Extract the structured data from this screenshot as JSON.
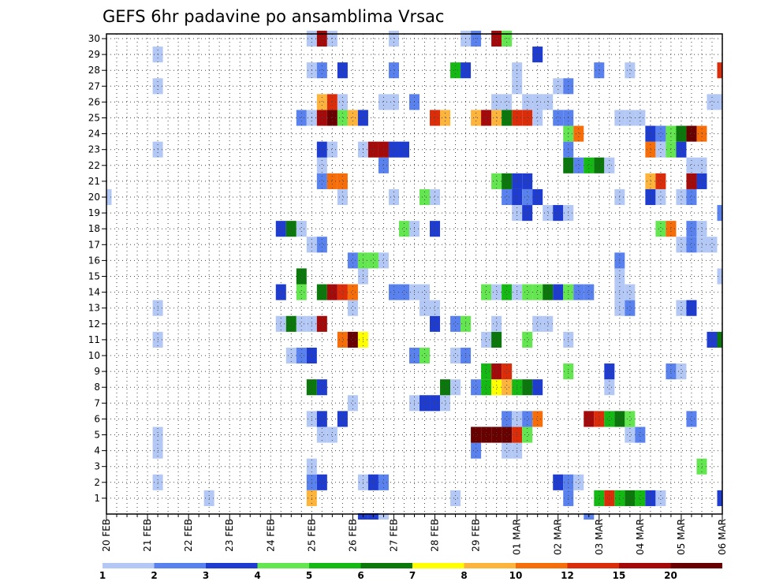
{
  "chart_data": {
    "type": "heatmap",
    "title": "GEFS 6hr padavine po ansamblima Vrsac",
    "xlabel": "",
    "ylabel": "",
    "x_ticks": [
      "20 FEB",
      "21 FEB",
      "22 FEB",
      "23 FEB",
      "24 FEB",
      "25 FEB",
      "26 FEB",
      "27 FEB",
      "28 FEB",
      "29 FEB",
      "01 MAR",
      "02 MAR",
      "03 MAR",
      "04 MAR",
      "05 MAR",
      "06 MAR"
    ],
    "x_range_steps": [
      0,
      60
    ],
    "steps_per_day": 4,
    "members": [
      1,
      2,
      3,
      4,
      5,
      6,
      7,
      8,
      9,
      10,
      11,
      12,
      13,
      14,
      15,
      16,
      17,
      18,
      19,
      20,
      21,
      22,
      23,
      24,
      25,
      26,
      27,
      28,
      29,
      30
    ],
    "grid": true,
    "colorbar": {
      "position": "bottom",
      "labels": [
        "1",
        "2",
        "3",
        "4",
        "5",
        "6",
        "7",
        "8",
        "10",
        "12",
        "15",
        "20"
      ],
      "colors": [
        "#b4c8f5",
        "#5a82ee",
        "#1e3ccf",
        "#64e650",
        "#14b914",
        "#0a780a",
        "#ffff00",
        "#fdb43c",
        "#f56e0a",
        "#dc2d0a",
        "#a50a0a",
        "#690000"
      ]
    },
    "cells": [
      [
        1,
        10,
        1
      ],
      [
        1,
        20,
        8
      ],
      [
        1,
        34,
        1
      ],
      [
        1,
        45,
        2
      ],
      [
        1,
        48,
        5
      ],
      [
        1,
        49,
        10
      ],
      [
        1,
        50,
        5
      ],
      [
        1,
        51,
        6
      ],
      [
        1,
        52,
        5
      ],
      [
        1,
        53,
        3
      ],
      [
        1,
        54,
        1
      ],
      [
        1,
        60,
        3
      ],
      [
        2,
        5,
        1
      ],
      [
        2,
        20,
        2
      ],
      [
        2,
        21,
        3
      ],
      [
        2,
        25,
        1
      ],
      [
        2,
        26,
        3
      ],
      [
        2,
        27,
        2
      ],
      [
        2,
        44,
        3
      ],
      [
        2,
        45,
        2
      ],
      [
        2,
        46,
        1
      ],
      [
        3,
        20,
        1
      ],
      [
        3,
        58,
        4
      ],
      [
        4,
        5,
        1
      ],
      [
        4,
        36,
        2
      ],
      [
        4,
        39,
        1
      ],
      [
        4,
        40,
        1
      ],
      [
        5,
        5,
        1
      ],
      [
        5,
        21,
        1
      ],
      [
        5,
        22,
        1
      ],
      [
        5,
        36,
        12
      ],
      [
        5,
        37,
        12
      ],
      [
        5,
        38,
        12
      ],
      [
        5,
        39,
        12
      ],
      [
        5,
        40,
        10
      ],
      [
        5,
        41,
        4
      ],
      [
        5,
        51,
        1
      ],
      [
        5,
        52,
        2
      ],
      [
        6,
        20,
        1
      ],
      [
        6,
        21,
        3
      ],
      [
        6,
        23,
        3
      ],
      [
        6,
        39,
        2
      ],
      [
        6,
        40,
        1
      ],
      [
        6,
        41,
        2
      ],
      [
        6,
        42,
        9
      ],
      [
        6,
        47,
        11
      ],
      [
        6,
        48,
        10
      ],
      [
        6,
        49,
        5
      ],
      [
        6,
        50,
        6
      ],
      [
        6,
        51,
        4
      ],
      [
        6,
        57,
        2
      ],
      [
        7,
        24,
        1
      ],
      [
        7,
        30,
        1
      ],
      [
        7,
        31,
        3
      ],
      [
        7,
        32,
        3
      ],
      [
        7,
        33,
        1
      ],
      [
        8,
        20,
        6
      ],
      [
        8,
        21,
        3
      ],
      [
        8,
        33,
        6
      ],
      [
        8,
        34,
        1
      ],
      [
        8,
        36,
        2
      ],
      [
        8,
        37,
        5
      ],
      [
        8,
        38,
        7
      ],
      [
        8,
        39,
        8
      ],
      [
        8,
        40,
        5
      ],
      [
        8,
        41,
        6
      ],
      [
        8,
        42,
        3
      ],
      [
        8,
        49,
        1
      ],
      [
        9,
        37,
        5
      ],
      [
        9,
        38,
        11
      ],
      [
        9,
        39,
        10
      ],
      [
        9,
        45,
        4
      ],
      [
        9,
        49,
        3
      ],
      [
        9,
        55,
        2
      ],
      [
        9,
        56,
        1
      ],
      [
        10,
        18,
        1
      ],
      [
        10,
        19,
        2
      ],
      [
        10,
        20,
        3
      ],
      [
        10,
        30,
        2
      ],
      [
        10,
        31,
        4
      ],
      [
        10,
        34,
        1
      ],
      [
        10,
        35,
        2
      ],
      [
        11,
        5,
        1
      ],
      [
        11,
        23,
        9
      ],
      [
        11,
        24,
        12
      ],
      [
        11,
        25,
        7
      ],
      [
        11,
        37,
        1
      ],
      [
        11,
        38,
        6
      ],
      [
        11,
        41,
        4
      ],
      [
        11,
        45,
        1
      ],
      [
        11,
        59,
        3
      ],
      [
        11,
        60,
        6
      ],
      [
        12,
        17,
        1
      ],
      [
        12,
        18,
        6
      ],
      [
        12,
        19,
        1
      ],
      [
        12,
        20,
        1
      ],
      [
        12,
        21,
        11
      ],
      [
        12,
        32,
        3
      ],
      [
        12,
        34,
        2
      ],
      [
        12,
        35,
        4
      ],
      [
        12,
        38,
        1
      ],
      [
        12,
        42,
        1
      ],
      [
        12,
        43,
        1
      ],
      [
        13,
        5,
        1
      ],
      [
        13,
        24,
        1
      ],
      [
        13,
        31,
        1
      ],
      [
        13,
        32,
        1
      ],
      [
        13,
        50,
        1
      ],
      [
        13,
        51,
        2
      ],
      [
        13,
        56,
        1
      ],
      [
        13,
        57,
        3
      ],
      [
        14,
        17,
        3
      ],
      [
        14,
        19,
        4
      ],
      [
        14,
        21,
        6
      ],
      [
        14,
        22,
        11
      ],
      [
        14,
        23,
        10
      ],
      [
        14,
        24,
        9
      ],
      [
        14,
        28,
        2
      ],
      [
        14,
        29,
        2
      ],
      [
        14,
        30,
        1
      ],
      [
        14,
        31,
        1
      ],
      [
        14,
        37,
        4
      ],
      [
        14,
        38,
        1
      ],
      [
        14,
        39,
        5
      ],
      [
        14,
        40,
        1
      ],
      [
        14,
        41,
        4
      ],
      [
        14,
        42,
        4
      ],
      [
        14,
        43,
        6
      ],
      [
        14,
        44,
        3
      ],
      [
        14,
        45,
        4
      ],
      [
        14,
        46,
        2
      ],
      [
        14,
        47,
        2
      ],
      [
        14,
        50,
        1
      ],
      [
        14,
        51,
        1
      ],
      [
        15,
        19,
        6
      ],
      [
        15,
        25,
        1
      ],
      [
        15,
        50,
        1
      ],
      [
        15,
        60,
        1
      ],
      [
        16,
        24,
        2
      ],
      [
        16,
        25,
        4
      ],
      [
        16,
        26,
        4
      ],
      [
        16,
        27,
        1
      ],
      [
        16,
        50,
        2
      ],
      [
        17,
        20,
        1
      ],
      [
        17,
        21,
        2
      ],
      [
        17,
        56,
        1
      ],
      [
        17,
        57,
        2
      ],
      [
        17,
        58,
        1
      ],
      [
        17,
        59,
        1
      ],
      [
        18,
        17,
        3
      ],
      [
        18,
        18,
        6
      ],
      [
        18,
        19,
        1
      ],
      [
        18,
        29,
        4
      ],
      [
        18,
        30,
        1
      ],
      [
        18,
        32,
        3
      ],
      [
        18,
        54,
        4
      ],
      [
        18,
        55,
        9
      ],
      [
        18,
        57,
        2
      ],
      [
        18,
        58,
        1
      ],
      [
        19,
        40,
        1
      ],
      [
        19,
        41,
        3
      ],
      [
        19,
        43,
        1
      ],
      [
        19,
        44,
        3
      ],
      [
        19,
        45,
        1
      ],
      [
        19,
        60,
        2
      ],
      [
        20,
        0,
        1
      ],
      [
        20,
        23,
        1
      ],
      [
        20,
        28,
        1
      ],
      [
        20,
        31,
        4
      ],
      [
        20,
        32,
        1
      ],
      [
        20,
        39,
        2
      ],
      [
        20,
        40,
        3
      ],
      [
        20,
        41,
        2
      ],
      [
        20,
        42,
        3
      ],
      [
        20,
        50,
        1
      ],
      [
        20,
        53,
        3
      ],
      [
        20,
        54,
        1
      ],
      [
        20,
        56,
        1
      ],
      [
        20,
        57,
        2
      ],
      [
        21,
        21,
        2
      ],
      [
        21,
        22,
        9
      ],
      [
        21,
        23,
        9
      ],
      [
        21,
        38,
        4
      ],
      [
        21,
        39,
        6
      ],
      [
        21,
        40,
        3
      ],
      [
        21,
        41,
        3
      ],
      [
        21,
        53,
        8
      ],
      [
        21,
        54,
        10
      ],
      [
        21,
        57,
        11
      ],
      [
        21,
        58,
        3
      ],
      [
        22,
        21,
        1
      ],
      [
        22,
        27,
        2
      ],
      [
        22,
        45,
        6
      ],
      [
        22,
        46,
        2
      ],
      [
        22,
        47,
        5
      ],
      [
        22,
        48,
        6
      ],
      [
        22,
        49,
        1
      ],
      [
        22,
        57,
        1
      ],
      [
        22,
        58,
        1
      ],
      [
        23,
        5,
        1
      ],
      [
        23,
        21,
        3
      ],
      [
        23,
        22,
        1
      ],
      [
        23,
        25,
        1
      ],
      [
        23,
        26,
        11
      ],
      [
        23,
        27,
        11
      ],
      [
        23,
        28,
        3
      ],
      [
        23,
        29,
        3
      ],
      [
        23,
        45,
        2
      ],
      [
        23,
        53,
        9
      ],
      [
        23,
        54,
        1
      ],
      [
        23,
        55,
        4
      ],
      [
        23,
        56,
        3
      ],
      [
        24,
        45,
        4
      ],
      [
        24,
        46,
        9
      ],
      [
        24,
        53,
        3
      ],
      [
        24,
        54,
        2
      ],
      [
        24,
        55,
        4
      ],
      [
        24,
        56,
        6
      ],
      [
        24,
        57,
        12
      ],
      [
        24,
        58,
        9
      ],
      [
        25,
        19,
        2
      ],
      [
        25,
        20,
        1
      ],
      [
        25,
        21,
        11
      ],
      [
        25,
        22,
        12
      ],
      [
        25,
        23,
        4
      ],
      [
        25,
        24,
        8
      ],
      [
        25,
        25,
        3
      ],
      [
        25,
        32,
        10
      ],
      [
        25,
        33,
        8
      ],
      [
        25,
        36,
        8
      ],
      [
        25,
        37,
        11
      ],
      [
        25,
        38,
        8
      ],
      [
        25,
        39,
        6
      ],
      [
        25,
        40,
        10
      ],
      [
        25,
        41,
        10
      ],
      [
        25,
        42,
        1
      ],
      [
        25,
        44,
        2
      ],
      [
        25,
        45,
        2
      ],
      [
        25,
        50,
        1
      ],
      [
        25,
        51,
        1
      ],
      [
        25,
        52,
        1
      ],
      [
        26,
        21,
        8
      ],
      [
        26,
        22,
        10
      ],
      [
        26,
        23,
        1
      ],
      [
        26,
        27,
        1
      ],
      [
        26,
        28,
        1
      ],
      [
        26,
        30,
        2
      ],
      [
        26,
        38,
        1
      ],
      [
        26,
        39,
        1
      ],
      [
        26,
        41,
        1
      ],
      [
        26,
        42,
        1
      ],
      [
        26,
        43,
        1
      ],
      [
        26,
        59,
        1
      ],
      [
        26,
        60,
        1
      ],
      [
        27,
        5,
        1
      ],
      [
        27,
        40,
        1
      ],
      [
        27,
        44,
        1
      ],
      [
        27,
        45,
        2
      ],
      [
        28,
        20,
        1
      ],
      [
        28,
        21,
        2
      ],
      [
        28,
        23,
        3
      ],
      [
        28,
        28,
        2
      ],
      [
        28,
        34,
        5
      ],
      [
        28,
        35,
        3
      ],
      [
        28,
        40,
        1
      ],
      [
        28,
        48,
        2
      ],
      [
        28,
        51,
        1
      ],
      [
        28,
        60,
        10
      ],
      [
        29,
        5,
        1
      ],
      [
        29,
        42,
        3
      ],
      [
        30,
        20,
        1
      ],
      [
        30,
        21,
        11
      ],
      [
        30,
        22,
        1
      ],
      [
        30,
        28,
        1
      ],
      [
        30,
        35,
        1
      ],
      [
        30,
        36,
        2
      ],
      [
        30,
        38,
        11
      ],
      [
        30,
        39,
        4
      ]
    ],
    "below_axis_cells": [
      [
        25,
        3
      ],
      [
        26,
        3
      ],
      [
        27,
        1
      ],
      [
        47,
        2
      ]
    ]
  }
}
